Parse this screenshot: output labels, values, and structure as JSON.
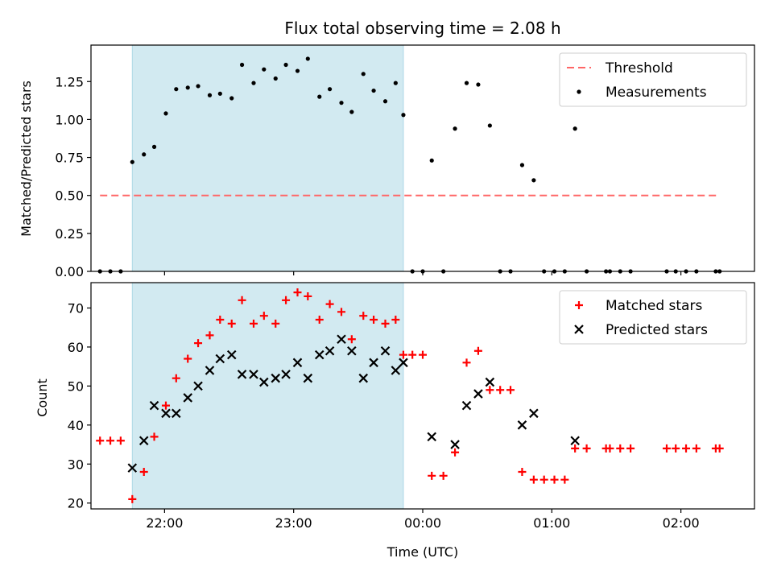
{
  "chart_data": [
    {
      "type": "scatter",
      "title": "Flux total observing time = 2.08 h",
      "xlabel": "",
      "ylabel": "Matched/Predicted stars",
      "xlim": [
        -2.57,
        2.57
      ],
      "ylim": [
        0,
        1.49
      ],
      "xticks": [
        "22:00",
        "23:00",
        "00:00",
        "01:00",
        "02:00"
      ],
      "xtick_values": [
        -2,
        -1,
        0,
        1,
        2
      ],
      "yticks": [
        "0.00",
        "0.25",
        "0.50",
        "0.75",
        "1.00",
        "1.25"
      ],
      "ytick_values": [
        0,
        0.25,
        0.5,
        0.75,
        1.0,
        1.25
      ],
      "shaded_region": [
        -2.25,
        -0.15
      ],
      "shade_color": "#add8e6",
      "legend": {
        "placement": "upper right",
        "entries": [
          "Threshold",
          "Measurements"
        ]
      },
      "series": [
        {
          "name": "Threshold",
          "kind": "dashed-line",
          "color": "#ff6666",
          "x": [
            -2.5,
            2.3
          ],
          "y": [
            0.5,
            0.5
          ]
        },
        {
          "name": "Measurements",
          "kind": "points",
          "color": "#000000",
          "x": [
            -2.5,
            -2.42,
            -2.34,
            -2.25,
            -2.16,
            -2.08,
            -1.99,
            -1.91,
            -1.82,
            -1.74,
            -1.65,
            -1.57,
            -1.48,
            -1.4,
            -1.31,
            -1.23,
            -1.14,
            -1.06,
            -0.97,
            -0.89,
            -0.8,
            -0.72,
            -0.63,
            -0.55,
            -0.46,
            -0.38,
            -0.29,
            -0.21,
            -0.15,
            -0.08,
            0.0,
            0.07,
            0.16,
            0.25,
            0.34,
            0.43,
            0.52,
            0.6,
            0.68,
            0.77,
            0.86,
            0.94,
            1.02,
            1.1,
            1.18,
            1.27,
            1.42,
            1.45,
            1.53,
            1.61,
            1.89,
            1.96,
            2.04,
            2.12,
            2.27,
            2.3
          ],
          "y": [
            0,
            0,
            0,
            0.72,
            0.77,
            0.82,
            1.04,
            1.2,
            1.21,
            1.22,
            1.16,
            1.17,
            1.14,
            1.36,
            1.24,
            1.33,
            1.27,
            1.36,
            1.32,
            1.4,
            1.15,
            1.2,
            1.11,
            1.05,
            1.3,
            1.19,
            1.12,
            1.24,
            1.03,
            0,
            0,
            0.73,
            0,
            0.94,
            1.24,
            1.23,
            0.96,
            0,
            0,
            0.7,
            0.6,
            0,
            0,
            0,
            0.94,
            0,
            0,
            0,
            0,
            0,
            0,
            0,
            0,
            0,
            0,
            0
          ]
        }
      ]
    },
    {
      "type": "scatter",
      "title": "",
      "xlabel": "Time (UTC)",
      "ylabel": "Count",
      "xlim": [
        -2.57,
        2.57
      ],
      "ylim": [
        18.5,
        76.5
      ],
      "xticks": [
        "22:00",
        "23:00",
        "00:00",
        "01:00",
        "02:00"
      ],
      "xtick_values": [
        -2,
        -1,
        0,
        1,
        2
      ],
      "yticks": [
        "20",
        "30",
        "40",
        "50",
        "60",
        "70"
      ],
      "ytick_values": [
        20,
        30,
        40,
        50,
        60,
        70
      ],
      "shaded_region": [
        -2.25,
        -0.15
      ],
      "shade_color": "#add8e6",
      "legend": {
        "placement": "upper right",
        "entries": [
          "Matched stars",
          "Predicted stars"
        ]
      },
      "series": [
        {
          "name": "Matched stars",
          "kind": "plus",
          "color": "#ff0000",
          "x": [
            -2.5,
            -2.42,
            -2.34,
            -2.25,
            -2.16,
            -2.08,
            -1.99,
            -1.91,
            -1.82,
            -1.74,
            -1.65,
            -1.57,
            -1.48,
            -1.4,
            -1.31,
            -1.23,
            -1.14,
            -1.06,
            -0.97,
            -0.89,
            -0.8,
            -0.72,
            -0.63,
            -0.55,
            -0.46,
            -0.38,
            -0.29,
            -0.21,
            -0.15,
            -0.08,
            0.0,
            0.07,
            0.16,
            0.25,
            0.34,
            0.43,
            0.52,
            0.6,
            0.68,
            0.77,
            0.86,
            0.94,
            1.02,
            1.1,
            1.18,
            1.27,
            1.42,
            1.45,
            1.53,
            1.61,
            1.89,
            1.96,
            2.04,
            2.12,
            2.27,
            2.3
          ],
          "y": [
            36,
            36,
            36,
            21,
            28,
            37,
            45,
            52,
            57,
            61,
            63,
            67,
            66,
            72,
            66,
            68,
            66,
            72,
            74,
            73,
            67,
            71,
            69,
            62,
            68,
            67,
            66,
            67,
            58,
            58,
            58,
            27,
            27,
            33,
            56,
            59,
            49,
            49,
            49,
            28,
            26,
            26,
            26,
            26,
            34,
            34,
            34,
            34,
            34,
            34,
            34,
            34,
            34,
            34,
            34,
            34
          ]
        },
        {
          "name": "Predicted stars",
          "kind": "x",
          "color": "#000000",
          "x": [
            -2.25,
            -2.16,
            -2.08,
            -1.99,
            -1.91,
            -1.82,
            -1.74,
            -1.65,
            -1.57,
            -1.48,
            -1.4,
            -1.31,
            -1.23,
            -1.14,
            -1.06,
            -0.97,
            -0.89,
            -0.8,
            -0.72,
            -0.63,
            -0.55,
            -0.46,
            -0.38,
            -0.29,
            -0.21,
            -0.15,
            0.07,
            0.25,
            0.34,
            0.43,
            0.52,
            0.77,
            0.86,
            1.18
          ],
          "y": [
            29,
            36,
            45,
            43,
            43,
            47,
            50,
            54,
            57,
            58,
            53,
            53,
            51,
            52,
            53,
            56,
            52,
            58,
            59,
            62,
            59,
            52,
            56,
            59,
            54,
            56,
            37,
            35,
            45,
            48,
            51,
            40,
            43,
            36
          ]
        }
      ]
    }
  ]
}
